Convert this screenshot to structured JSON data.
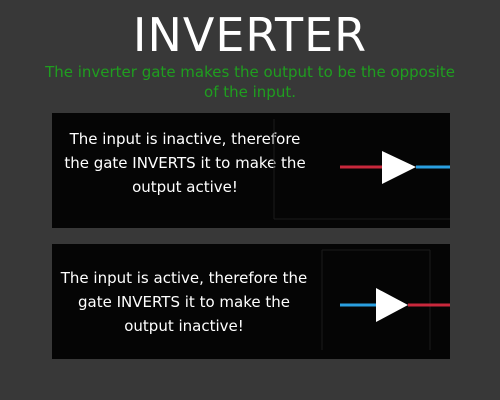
{
  "header": {
    "title": "INVERTER",
    "subtitle": "The inverter gate makes the output to be the opposite of the input."
  },
  "panels": [
    {
      "text": "The input is inactive, therefore the gate INVERTS it to make the output active!",
      "input_state": "inactive",
      "output_state": "active"
    },
    {
      "text": "The input is active, therefore the gate INVERTS it to make the output inactive!",
      "input_state": "active",
      "output_state": "inactive"
    }
  ],
  "colors": {
    "background": "#383838",
    "panel": "#050505",
    "title": "#ffffff",
    "subtitle": "#1f9e1f",
    "inactive_wire": "#c8283c",
    "active_wire": "#2a9fe0",
    "gate": "#ffffff"
  }
}
